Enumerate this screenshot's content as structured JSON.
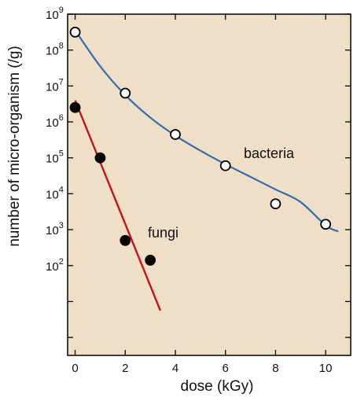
{
  "chart_data": {
    "type": "scatter",
    "title": "",
    "xlabel": "dose (kGy)",
    "ylabel": "number of micro-organism (/g)",
    "xlim": [
      -0.3,
      11
    ],
    "ylim_log10": [
      -0.5,
      9
    ],
    "y_scale": "log",
    "x_ticks": [
      0,
      2,
      4,
      6,
      8,
      10
    ],
    "x_tick_labels": [
      "0",
      "2",
      "4",
      "6",
      "8",
      "10"
    ],
    "y_tick_positions": [
      0,
      1,
      2,
      3,
      4,
      5,
      6,
      7,
      8,
      9
    ],
    "y_tick_labels": [
      {
        "exp": 2,
        "base": "10",
        "power": "2"
      },
      {
        "exp": 3,
        "base": "10",
        "power": "3"
      },
      {
        "exp": 4,
        "base": "10",
        "power": "4"
      },
      {
        "exp": 5,
        "base": "10",
        "power": "5"
      },
      {
        "exp": 6,
        "base": "10",
        "power": "6"
      },
      {
        "exp": 7,
        "base": "10",
        "power": "7"
      },
      {
        "exp": 8,
        "base": "10",
        "power": "8"
      },
      {
        "exp": 9,
        "base": "10",
        "power": "9"
      }
    ],
    "background_color": "#efdfc6",
    "grid": false,
    "series": [
      {
        "name": "bacteria",
        "marker": "open-circle",
        "line_color": "#2f6cb0",
        "x": [
          0,
          2,
          4,
          6,
          8,
          10
        ],
        "y_log10": [
          8.5,
          6.8,
          5.65,
          4.78,
          3.72,
          3.15
        ],
        "curve_x": [
          0,
          1,
          2,
          3,
          4,
          5,
          6,
          7,
          8,
          9,
          10,
          10.5
        ],
        "curve_y_log10": [
          8.55,
          7.55,
          6.75,
          6.12,
          5.62,
          5.2,
          4.82,
          4.47,
          4.12,
          3.77,
          3.12,
          2.95
        ]
      },
      {
        "name": "fungi",
        "marker": "filled-circle",
        "line_color": "#c0141c",
        "x": [
          0,
          1,
          2,
          3
        ],
        "y_log10": [
          6.4,
          5.0,
          2.7,
          2.15
        ],
        "line_x": [
          0,
          3.4
        ],
        "line_y_log10": [
          6.6,
          0.75
        ]
      }
    ],
    "labels": {
      "bacteria": "bacteria",
      "fungi": "fungi"
    }
  }
}
